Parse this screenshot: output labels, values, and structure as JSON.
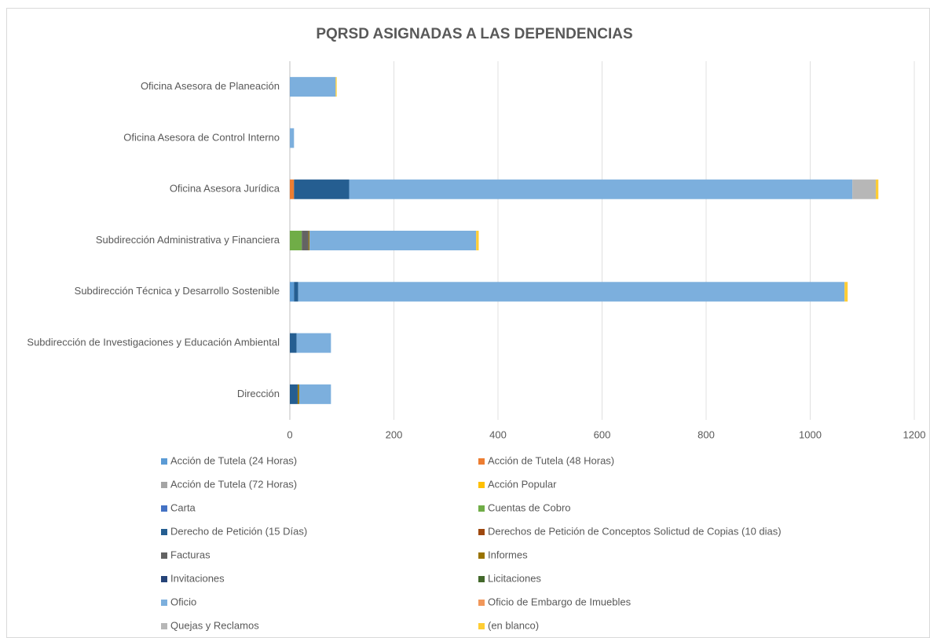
{
  "chart_data": {
    "type": "stacked-bar-horizontal",
    "title": "PQRSD ASIGNADAS A LAS DEPENDENCIAS",
    "categories": [
      "Oficina Asesora de Planeación",
      "Oficina Asesora de Control Interno",
      "Oficina Asesora Jurídica",
      "Subdirección Administrativa y Financiera",
      "Subdirección Técnica y Desarrollo Sostenible",
      "Subdirección de Investigaciones y Educación Ambiental",
      "Dirección"
    ],
    "series": [
      {
        "name": "Acción de Tutela (24 Horas)",
        "color": "#5b9bd5",
        "values": [
          1,
          0,
          0,
          0,
          8,
          0,
          0
        ]
      },
      {
        "name": "Acción de Tutela (48 Horas)",
        "color": "#ed7d31",
        "values": [
          0,
          0,
          8,
          0,
          0,
          0,
          0
        ]
      },
      {
        "name": "Acción de Tutela (72 Horas)",
        "color": "#a5a5a5",
        "values": [
          0,
          0,
          0,
          0,
          0,
          0,
          0
        ]
      },
      {
        "name": "Acción Popular",
        "color": "#ffc000",
        "values": [
          0,
          0,
          0,
          0,
          0,
          0,
          0
        ]
      },
      {
        "name": "Carta",
        "color": "#4472c4",
        "values": [
          0,
          0,
          0,
          0,
          0,
          0,
          0
        ]
      },
      {
        "name": "Cuentas de Cobro",
        "color": "#70ad47",
        "values": [
          0,
          0,
          0,
          23,
          0,
          0,
          0
        ]
      },
      {
        "name": "Derecho de Petición (15 Días)",
        "color": "#255e91",
        "values": [
          0,
          0,
          106,
          0,
          8,
          13,
          15
        ]
      },
      {
        "name": "Derechos de Petición de Conceptos Solictud  de Copias (10 dias)",
        "color": "#9e480e",
        "values": [
          0,
          0,
          0,
          0,
          0,
          0,
          0
        ]
      },
      {
        "name": "Facturas",
        "color": "#636363",
        "values": [
          0,
          0,
          0,
          13,
          0,
          0,
          0
        ]
      },
      {
        "name": "Informes",
        "color": "#997300",
        "values": [
          0,
          0,
          0,
          2,
          0,
          0,
          3
        ]
      },
      {
        "name": "Invitaciones",
        "color": "#264478",
        "values": [
          0,
          0,
          0,
          0,
          0,
          0,
          0
        ]
      },
      {
        "name": "Licitaciones",
        "color": "#43682b",
        "values": [
          0,
          0,
          0,
          0,
          0,
          0,
          0
        ]
      },
      {
        "name": "Oficio",
        "color": "#7cafdd",
        "values": [
          87,
          8,
          967,
          320,
          1050,
          66,
          61
        ]
      },
      {
        "name": "Oficio de Embargo de Imuebles",
        "color": "#f1975a",
        "values": [
          0,
          0,
          0,
          0,
          0,
          0,
          0
        ]
      },
      {
        "name": "Quejas y Reclamos",
        "color": "#b7b7b7",
        "values": [
          0,
          0,
          45,
          0,
          0,
          0,
          0
        ]
      },
      {
        "name": "(en blanco)",
        "color": "#ffcd33",
        "values": [
          2,
          0,
          5,
          5,
          6,
          0,
          0
        ]
      }
    ],
    "xlim": [
      0,
      1200
    ],
    "xticks": [
      0,
      200,
      400,
      600,
      800,
      1000,
      1200
    ],
    "grid": true,
    "legend": "bottom"
  }
}
